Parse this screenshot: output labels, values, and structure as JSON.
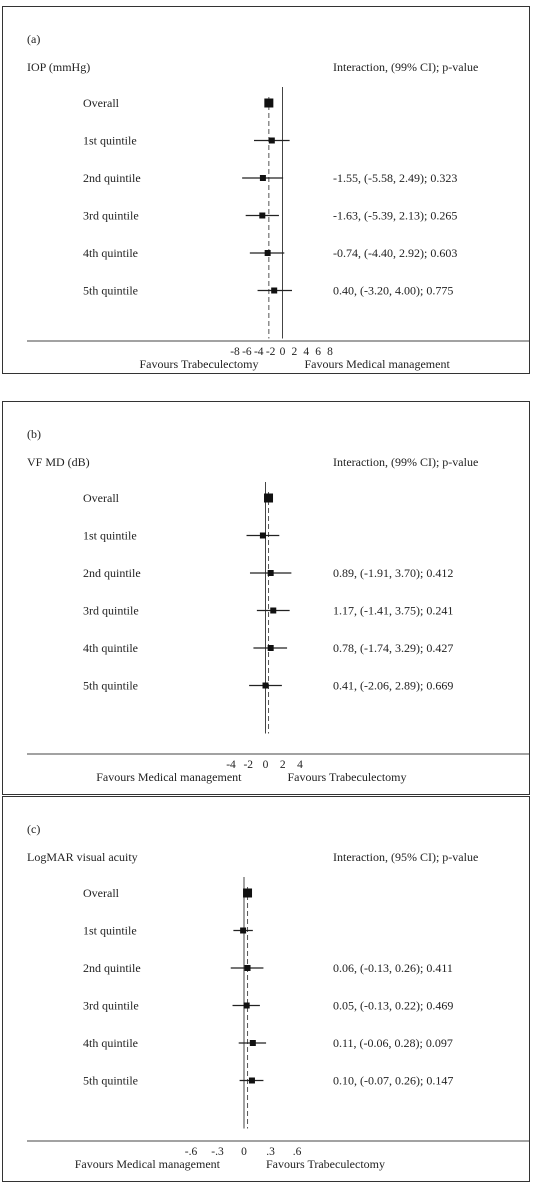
{
  "panels": [
    {
      "panel_label": "(a)",
      "measure": "IOP (mmHg)",
      "interaction_header": "Interaction, (99% CI); p-value",
      "left_favour": "Favours Trabeculectomy",
      "right_favour": "Favours Medical management",
      "chart_data": {
        "type": "forest",
        "xlim": [
          -8,
          8
        ],
        "ticks": [
          -8,
          -6,
          -4,
          -2,
          0,
          2,
          4,
          6,
          8
        ],
        "tick_labels": [
          "-8",
          "-6",
          "-4",
          "-2",
          "0",
          "2",
          "4",
          "6",
          "8"
        ],
        "overall_dashed_line": -2.3,
        "rows": [
          {
            "label": "Overall",
            "est": -2.3,
            "lo": -2.9,
            "hi": -1.7,
            "overall": true,
            "text": ""
          },
          {
            "label": "1st quintile",
            "est": -1.8,
            "lo": -4.8,
            "hi": 1.2,
            "text": ""
          },
          {
            "label": "2nd quintile",
            "est": -3.3,
            "lo": -6.8,
            "hi": 0.1,
            "text": "-1.55, (-5.58, 2.49); 0.323"
          },
          {
            "label": "3rd quintile",
            "est": -3.4,
            "lo": -6.2,
            "hi": -0.6,
            "text": "-1.63, (-5.39, 2.13); 0.265"
          },
          {
            "label": "4th quintile",
            "est": -2.5,
            "lo": -5.5,
            "hi": 0.3,
            "text": "-0.74, (-4.40, 2.92); 0.603"
          },
          {
            "label": "5th quintile",
            "est": -1.4,
            "lo": -4.2,
            "hi": 1.6,
            "text": "0.40, (-3.20, 4.00); 0.775"
          }
        ]
      }
    },
    {
      "panel_label": "(b)",
      "measure": "VF MD (dB)",
      "interaction_header": "Interaction, (99% CI); p-value",
      "left_favour": "Favours Medical management",
      "right_favour": "Favours Trabeculectomy",
      "chart_data": {
        "type": "forest",
        "xlim": [
          -4,
          4
        ],
        "ticks": [
          -4,
          -2,
          0,
          2,
          4
        ],
        "tick_labels": [
          "-4",
          "-2",
          "0",
          "2",
          "4"
        ],
        "overall_dashed_line": 0.35,
        "rows": [
          {
            "label": "Overall",
            "est": 0.35,
            "lo": 0.0,
            "hi": 0.7,
            "overall": true,
            "text": ""
          },
          {
            "label": "1st quintile",
            "est": -0.3,
            "lo": -2.2,
            "hi": 1.6,
            "text": ""
          },
          {
            "label": "2nd quintile",
            "est": 0.6,
            "lo": -1.8,
            "hi": 3.0,
            "text": "0.89, (-1.91, 3.70); 0.412"
          },
          {
            "label": "3rd quintile",
            "est": 0.9,
            "lo": -1.0,
            "hi": 2.8,
            "text": "1.17, (-1.41, 3.75); 0.241"
          },
          {
            "label": "4th quintile",
            "est": 0.6,
            "lo": -1.4,
            "hi": 2.5,
            "text": "0.78, (-1.74, 3.29); 0.427"
          },
          {
            "label": "5th quintile",
            "est": 0.0,
            "lo": -1.9,
            "hi": 1.9,
            "text": "0.41, (-2.06, 2.89); 0.669"
          }
        ]
      }
    },
    {
      "panel_label": "(c)",
      "measure": "LogMAR visual acuity",
      "interaction_header": "Interaction, (95% CI); p-value",
      "left_favour": "Favours Medical management",
      "right_favour": "Favours Trabeculectomy",
      "chart_data": {
        "type": "forest",
        "xlim": [
          -0.6,
          0.6
        ],
        "ticks": [
          -0.6,
          -0.3,
          0,
          0.3,
          0.6
        ],
        "tick_labels": [
          "-.6",
          "-.3",
          "0",
          ".3",
          ".6"
        ],
        "overall_dashed_line": 0.04,
        "rows": [
          {
            "label": "Overall",
            "est": 0.04,
            "lo": 0.01,
            "hi": 0.07,
            "overall": true,
            "text": ""
          },
          {
            "label": "1st quintile",
            "est": -0.01,
            "lo": -0.12,
            "hi": 0.1,
            "text": ""
          },
          {
            "label": "2nd quintile",
            "est": 0.04,
            "lo": -0.15,
            "hi": 0.22,
            "text": "0.06, (-0.13, 0.26); 0.411"
          },
          {
            "label": "3rd quintile",
            "est": 0.03,
            "lo": -0.13,
            "hi": 0.18,
            "text": "0.05, (-0.13, 0.22); 0.469"
          },
          {
            "label": "4th quintile",
            "est": 0.1,
            "lo": -0.06,
            "hi": 0.25,
            "text": "0.11, (-0.06, 0.28); 0.097"
          },
          {
            "label": "5th quintile",
            "est": 0.09,
            "lo": -0.05,
            "hi": 0.22,
            "text": "0.10, (-0.07, 0.26); 0.147"
          }
        ]
      }
    }
  ]
}
